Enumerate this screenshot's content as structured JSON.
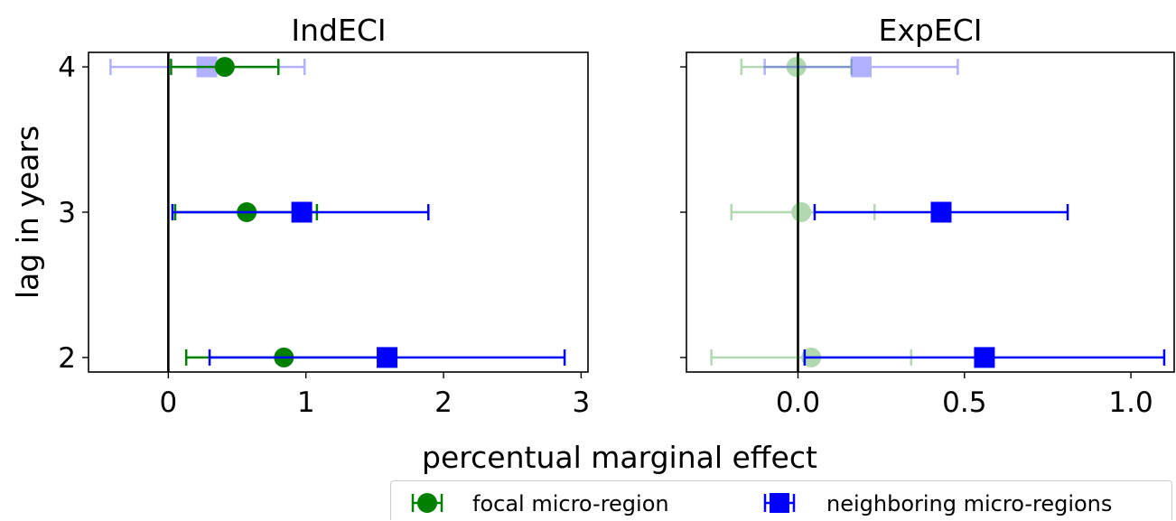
{
  "figure": {
    "ylabel": "lag in years",
    "xlabel": "percentual marginal effect"
  },
  "legend": {
    "items": [
      {
        "label": "focal micro-region",
        "color": "#008000",
        "marker": "circle"
      },
      {
        "label": "neighboring micro-regions",
        "color": "#0000ff",
        "marker": "square"
      }
    ]
  },
  "chart_data": [
    {
      "type": "scatter",
      "title": "IndECI",
      "xlim": [
        -0.58,
        3.05
      ],
      "ylim": [
        1.9,
        4.1
      ],
      "xticks": [
        0,
        1,
        2,
        3
      ],
      "xtick_labels": [
        "0",
        "1",
        "2",
        "3"
      ],
      "yticks": [
        2,
        3,
        4
      ],
      "ytick_labels": [
        "2",
        "3",
        "4"
      ],
      "reference_line_x": 0,
      "series": [
        {
          "name": "focal micro-region",
          "color": "#008000",
          "marker": "circle",
          "points": [
            {
              "lag": 4,
              "estimate": 0.41,
              "ci_low": 0.02,
              "ci_high": 0.8,
              "alpha": 1.0
            },
            {
              "lag": 3,
              "estimate": 0.57,
              "ci_low": 0.05,
              "ci_high": 1.08,
              "alpha": 1.0
            },
            {
              "lag": 2,
              "estimate": 0.84,
              "ci_low": 0.13,
              "ci_high": 1.56,
              "alpha": 1.0
            }
          ]
        },
        {
          "name": "neighboring micro-regions",
          "color": "#0000ff",
          "marker": "square",
          "points": [
            {
              "lag": 4,
              "estimate": 0.28,
              "ci_low": -0.42,
              "ci_high": 0.99,
              "alpha": 0.3
            },
            {
              "lag": 3,
              "estimate": 0.97,
              "ci_low": 0.03,
              "ci_high": 1.89,
              "alpha": 1.0
            },
            {
              "lag": 2,
              "estimate": 1.59,
              "ci_low": 0.3,
              "ci_high": 2.88,
              "alpha": 1.0
            }
          ]
        }
      ]
    },
    {
      "type": "scatter",
      "title": "ExpECI",
      "xlim": [
        -0.335,
        1.13
      ],
      "ylim": [
        1.9,
        4.1
      ],
      "xticks": [
        0.0,
        0.5,
        1.0
      ],
      "xtick_labels": [
        "0.0",
        "0.5",
        "1.0"
      ],
      "yticks": [
        2,
        3,
        4
      ],
      "ytick_labels": [
        "",
        "",
        ""
      ],
      "reference_line_x": 0,
      "series": [
        {
          "name": "focal micro-region",
          "color": "#008000",
          "marker": "circle",
          "points": [
            {
              "lag": 4,
              "estimate": -0.005,
              "ci_low": -0.17,
              "ci_high": 0.16,
              "alpha": 0.3
            },
            {
              "lag": 3,
              "estimate": 0.01,
              "ci_low": -0.2,
              "ci_high": 0.23,
              "alpha": 0.3
            },
            {
              "lag": 2,
              "estimate": 0.04,
              "ci_low": -0.26,
              "ci_high": 0.34,
              "alpha": 0.3
            }
          ]
        },
        {
          "name": "neighboring micro-regions",
          "color": "#0000ff",
          "marker": "square",
          "points": [
            {
              "lag": 4,
              "estimate": 0.19,
              "ci_low": -0.1,
              "ci_high": 0.48,
              "alpha": 0.3
            },
            {
              "lag": 3,
              "estimate": 0.43,
              "ci_low": 0.05,
              "ci_high": 0.81,
              "alpha": 1.0
            },
            {
              "lag": 2,
              "estimate": 0.56,
              "ci_low": 0.02,
              "ci_high": 1.1,
              "alpha": 1.0
            }
          ]
        }
      ]
    }
  ]
}
